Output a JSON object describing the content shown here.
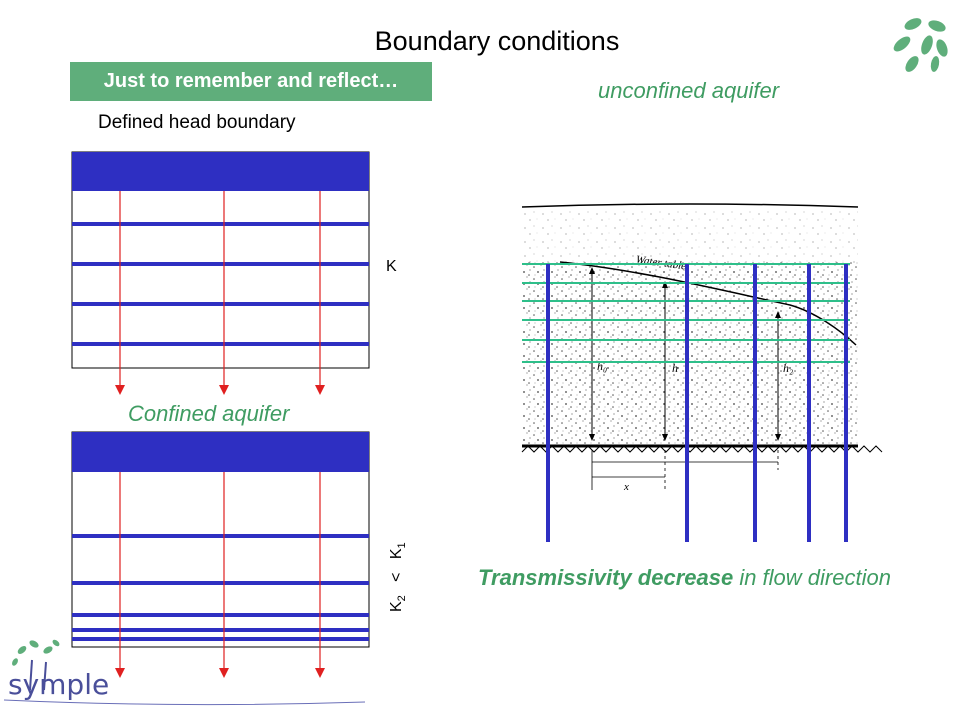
{
  "title": "Boundary conditions",
  "remember_box": "Just to remember and reflect…",
  "defined_head": "Defined head boundary",
  "unconfined_label": "unconfined aquifer",
  "confined_label": "Confined aquifer",
  "k_label": "K",
  "k_compare": {
    "k2": "K",
    "k2_sub": "2",
    "lt": "<",
    "k1": "K",
    "k1_sub": "1"
  },
  "transmissivity": {
    "bold": "Transmissivity decrease",
    "rest": " in flow direction"
  },
  "figure_labels": {
    "water_table": "Water table",
    "h0": "h₀",
    "h": "h",
    "h2": "h₂",
    "x": "x"
  },
  "logo_text": "symple",
  "colors": {
    "blue": "#2e2fc2",
    "red": "#e02020",
    "green_line": "#2ebf8a",
    "green_text": "#3f9c62",
    "box_green": "#5fae7b"
  }
}
